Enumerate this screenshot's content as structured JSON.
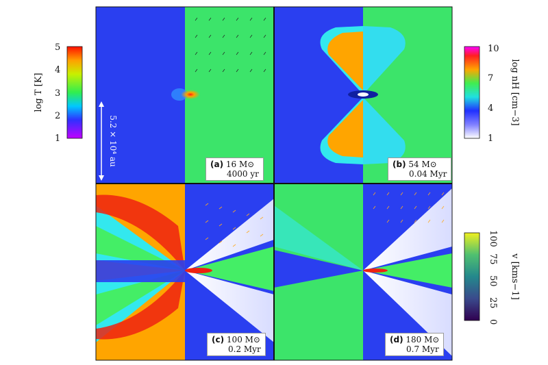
{
  "panels": [
    {
      "tag": "(a)",
      "mass_value": "16",
      "mass_unit": "M⊙",
      "time": "4000 yr"
    },
    {
      "tag": "(b)",
      "mass_value": "54",
      "mass_unit": "M⊙",
      "time": "0.04 Myr"
    },
    {
      "tag": "(c)",
      "mass_value": "100",
      "mass_unit": "M⊙",
      "time": "0.2 Myr"
    },
    {
      "tag": "(d)",
      "mass_value": "180",
      "mass_unit": "M⊙",
      "time": "0.7 Myr"
    }
  ],
  "colorbars": {
    "temperature": {
      "label": "log T [K]",
      "ticks": [
        "1",
        "2",
        "3",
        "4",
        "5"
      ]
    },
    "density": {
      "label": "log nH [cm−3]",
      "ticks": [
        "1",
        "4",
        "7",
        "10"
      ]
    },
    "velocity": {
      "label": "v [kms−1]",
      "ticks": [
        "0",
        "25",
        "50",
        "75",
        "100"
      ]
    }
  },
  "scale_bar": {
    "label": "5.2 × 10⁴ au"
  },
  "colors": {
    "blue": "#2233ee",
    "green": "#44ee66",
    "orange": "#ffa500",
    "red": "#ee2211",
    "cyan": "#33ddee",
    "white": "#f4f4ff"
  }
}
